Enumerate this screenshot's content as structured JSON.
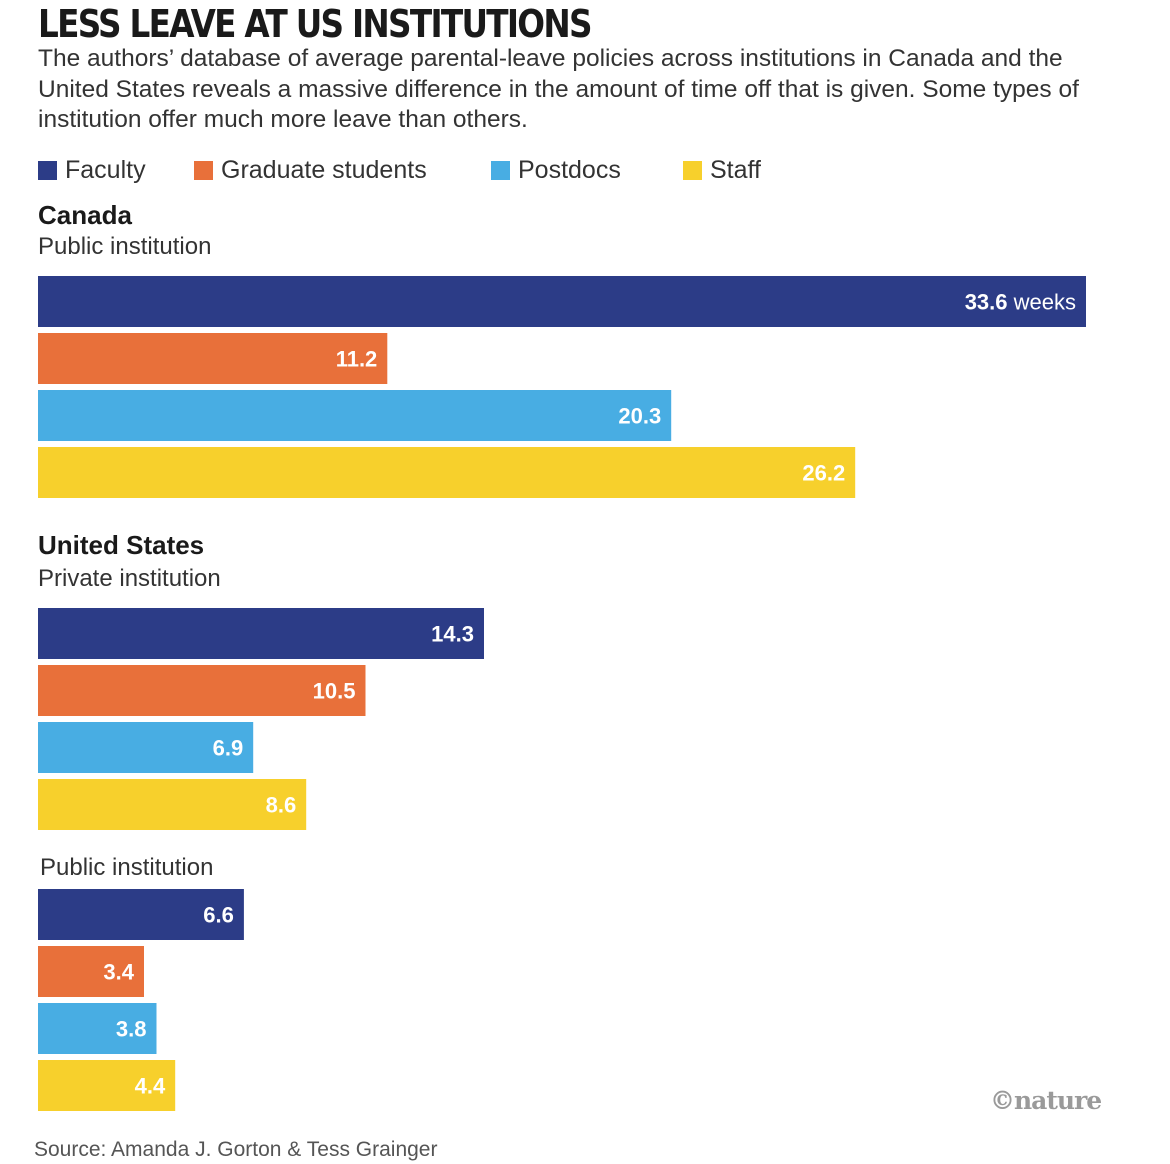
{
  "title": "LESS LEAVE AT US INSTITUTIONS",
  "subtitle": "The authors’ database of average parental-leave policies across institutions in Canada and the United States reveals a massive difference in the amount of time off that is given. Some types of institution offer much more leave than others.",
  "legend": [
    {
      "label": "Faculty",
      "color": "#2c3c87"
    },
    {
      "label": "Graduate students",
      "color": "#e8703a"
    },
    {
      "label": "Postdocs",
      "color": "#48ade3"
    },
    {
      "label": "Staff",
      "color": "#f7d02c"
    }
  ],
  "source": "Source: Amanda J. Gorton & Tess Grainger",
  "credit": "©nature",
  "chart_data": {
    "type": "bar",
    "orientation": "horizontal",
    "unit": "weeks",
    "first_value_label": "33.6 weeks",
    "categories": [
      "Faculty",
      "Graduate students",
      "Postdocs",
      "Staff"
    ],
    "colors": [
      "#2c3c87",
      "#e8703a",
      "#48ade3",
      "#f7d02c"
    ],
    "value_max": 33.6,
    "groups": [
      {
        "country": "Canada",
        "institution": "Public institution",
        "values": [
          33.6,
          11.2,
          20.3,
          26.2
        ]
      },
      {
        "country": "United States",
        "institution": "Private institution",
        "values": [
          14.3,
          10.5,
          6.9,
          8.6
        ]
      },
      {
        "country": "",
        "institution": "Public institution",
        "values": [
          6.6,
          3.4,
          3.8,
          4.4
        ]
      }
    ]
  }
}
